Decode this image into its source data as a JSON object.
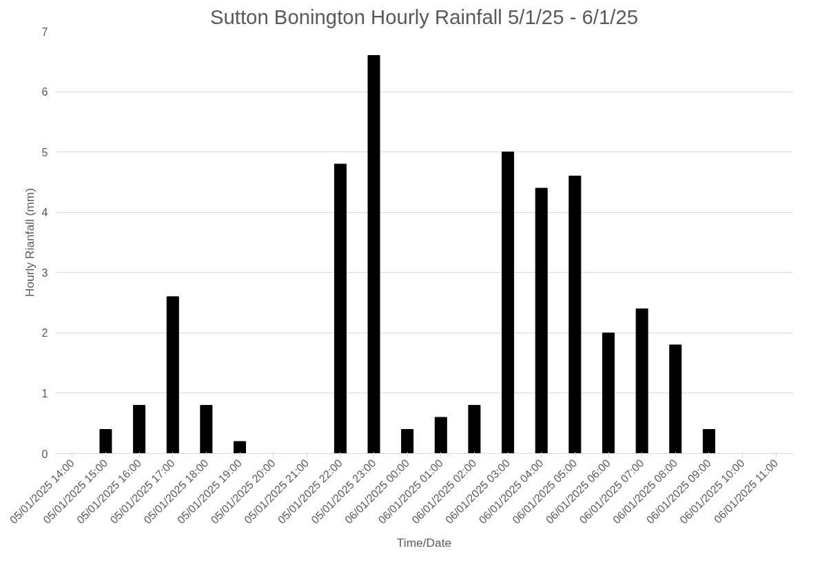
{
  "chart_data": {
    "type": "bar",
    "title": "Sutton Bonington Hourly Rainfall 5/1/25 - 6/1/25",
    "xlabel": "Time/Date",
    "ylabel": "Hourly Rianfall (mm)",
    "categories": [
      "05/01/2025 14:00",
      "05/01/2025 15:00",
      "05/01/2025 16:00",
      "05/01/2025 17:00",
      "05/01/2025 18:00",
      "05/01/2025 19:00",
      "05/01/2025 20:00",
      "05/01/2025 21:00",
      "05/01/2025 22:00",
      "05/01/2025 23:00",
      "06/01/2025 00:00",
      "06/01/2025 01:00",
      "06/01/2025 02:00",
      "06/01/2025 03:00",
      "06/01/2025 04:00",
      "06/01/2025 05:00",
      "06/01/2025 06:00",
      "06/01/2025 07:00",
      "06/01/2025 08:00",
      "06/01/2025 09:00",
      "06/01/2025 10:00",
      "06/01/2025 11:00"
    ],
    "values": [
      0,
      0.4,
      0.8,
      2.6,
      0.8,
      0.2,
      0,
      0,
      4.8,
      6.6,
      0.4,
      0.6,
      0.8,
      5.0,
      4.4,
      4.6,
      2.0,
      2.4,
      1.8,
      0.4,
      0,
      0
    ],
    "color": "#000000",
    "ylim": [
      0,
      7
    ],
    "yticks": [
      0,
      1,
      2,
      3,
      4,
      5,
      6,
      7
    ],
    "grid": "y"
  }
}
